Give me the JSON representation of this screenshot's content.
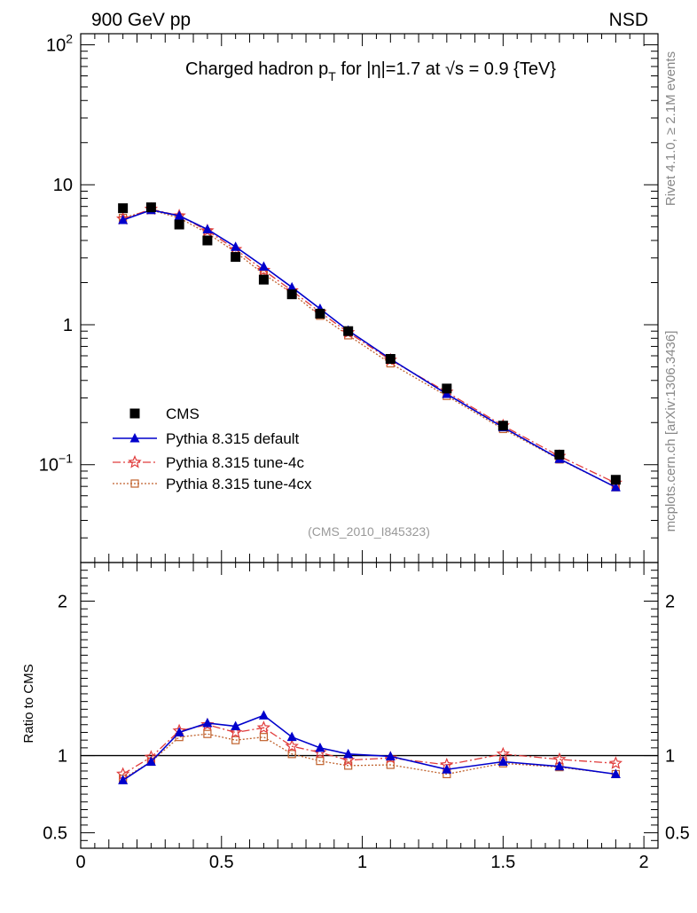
{
  "header": {
    "left": "900 GeV pp",
    "right": "NSD"
  },
  "side_labels": {
    "rivet": "Rivet 4.1.0, ≥ 2.1M events",
    "mcplots": "mcplots.cern.ch [arXiv:1306.3436]"
  },
  "plot_title": {
    "pre": "Charged hadron p",
    "sub": "T",
    "post": " for |η|=1.7 at √s = 0.9 {TeV}"
  },
  "analysis_tag": "(CMS_2010_I845323)",
  "ratio_ylabel": "Ratio to CMS",
  "legend": [
    "CMS",
    "Pythia 8.315 default",
    "Pythia 8.315 tune-4c",
    "Pythia 8.315 tune-4cx"
  ],
  "colors": {
    "cms": "#000000",
    "default": "#0000cc",
    "tune4c": "#e03c3c",
    "tune4cx": "#c0622d"
  },
  "chart_data": [
    {
      "type": "scatter",
      "yscale": "log",
      "title": "Charged hadron pT for |eta|=1.7 at sqrt(s) = 0.9 {TeV}",
      "xlabel": "",
      "ylabel": "",
      "xlim": [
        0,
        2.05
      ],
      "ylim": [
        0.02,
        120
      ],
      "x_ticks": [
        0,
        0.5,
        1,
        1.5,
        2
      ],
      "x_tick_labels": [
        "0",
        "0.5",
        "1",
        "1.5",
        "2"
      ],
      "y_tick_labels": [
        {
          "v": 100,
          "m": "10",
          "e": "2"
        },
        {
          "v": 10,
          "m": "10",
          "e": ""
        },
        {
          "v": 1,
          "m": "1",
          "e": ""
        },
        {
          "v": 0.1,
          "m": "10",
          "e": "−1"
        }
      ],
      "x": [
        0.15,
        0.25,
        0.35,
        0.45,
        0.55,
        0.65,
        0.75,
        0.85,
        0.95,
        1.1,
        1.3,
        1.5,
        1.7,
        1.9
      ],
      "series": [
        {
          "name": "CMS",
          "values": [
            6.8,
            6.9,
            5.2,
            4.0,
            3.05,
            2.1,
            1.65,
            1.2,
            0.9,
            0.57,
            0.35,
            0.19,
            0.118,
            0.078
          ]
        },
        {
          "name": "Pythia 8.315 default",
          "values": [
            5.6,
            6.6,
            6.0,
            4.8,
            3.6,
            2.6,
            1.85,
            1.3,
            0.91,
            0.57,
            0.32,
            0.185,
            0.11,
            0.069
          ]
        },
        {
          "name": "Pythia 8.315 tune-4c",
          "values": [
            5.7,
            6.7,
            6.0,
            4.7,
            3.45,
            2.45,
            1.75,
            1.23,
            0.88,
            0.56,
            0.33,
            0.19,
            0.115,
            0.074
          ]
        },
        {
          "name": "Pythia 8.315 tune-4cx",
          "values": [
            5.8,
            6.6,
            5.8,
            4.5,
            3.3,
            2.3,
            1.68,
            1.16,
            0.84,
            0.53,
            0.31,
            0.18,
            0.109,
            0.069
          ]
        }
      ]
    },
    {
      "type": "line",
      "title": "",
      "xlabel": "",
      "ylabel": "Ratio to CMS",
      "xlim": [
        0,
        2.05
      ],
      "ylim": [
        0.4,
        2.25
      ],
      "x_ticks": [
        0,
        0.5,
        1,
        1.5,
        2
      ],
      "x_tick_labels": [
        "0",
        "0.5",
        "1",
        "1.5",
        "2"
      ],
      "y_ticks": [
        0.5,
        1,
        2
      ],
      "y_tick_labels": [
        "0.5",
        "1",
        "2"
      ],
      "reference_line": 1,
      "x": [
        0.15,
        0.25,
        0.35,
        0.45,
        0.55,
        0.65,
        0.75,
        0.85,
        0.95,
        1.1,
        1.3,
        1.5,
        1.7,
        1.9
      ],
      "series": [
        {
          "name": "Pythia 8.315 default",
          "values": [
            0.84,
            0.96,
            1.15,
            1.21,
            1.19,
            1.26,
            1.12,
            1.05,
            1.01,
            0.995,
            0.91,
            0.96,
            0.93,
            0.88
          ]
        },
        {
          "name": "Pythia 8.315 tune-4c",
          "values": [
            0.88,
            0.99,
            1.16,
            1.2,
            1.15,
            1.18,
            1.06,
            1.02,
            0.97,
            0.985,
            0.94,
            1.01,
            0.975,
            0.95
          ]
        },
        {
          "name": "Pythia 8.315 tune-4cx",
          "values": [
            0.85,
            0.96,
            1.12,
            1.14,
            1.1,
            1.12,
            1.01,
            0.965,
            0.935,
            0.94,
            0.88,
            0.95,
            0.925,
            0.88
          ]
        }
      ]
    }
  ]
}
